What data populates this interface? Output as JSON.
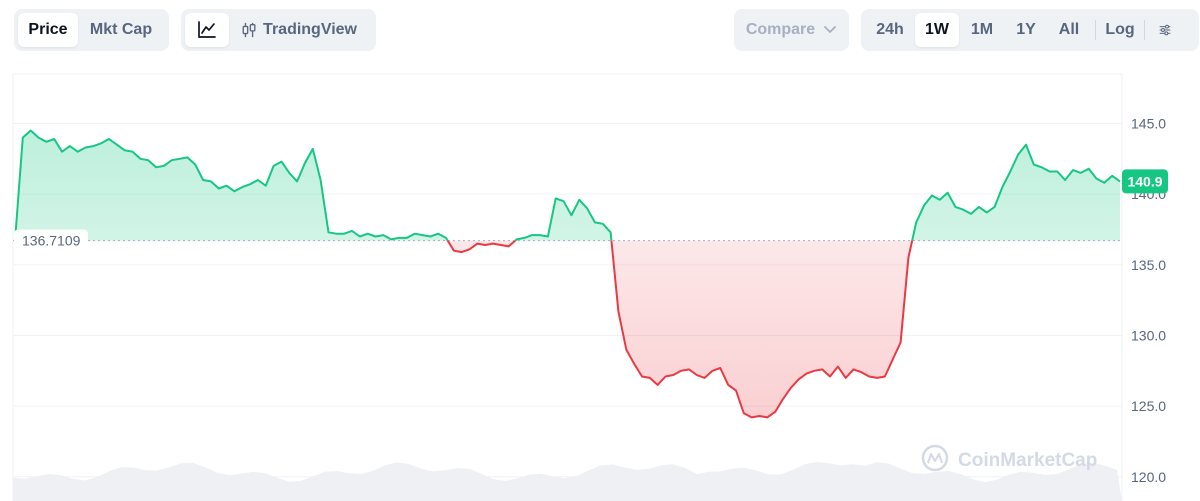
{
  "toolbar": {
    "view_tabs": [
      {
        "label": "Price",
        "active": true
      },
      {
        "label": "Mkt Cap",
        "active": false
      }
    ],
    "tradingview_label": "TradingView",
    "compare_label": "Compare",
    "ranges": [
      {
        "label": "24h",
        "active": false
      },
      {
        "label": "1W",
        "active": true
      },
      {
        "label": "1M",
        "active": false
      },
      {
        "label": "1Y",
        "active": false
      },
      {
        "label": "All",
        "active": false
      }
    ],
    "log_label": "Log"
  },
  "watermark": "CoinMarketCap",
  "colors": {
    "up": "#16c784",
    "down": "#ea3943",
    "grid": "#eff2f5",
    "axis_text": "#58667e"
  },
  "chart_data": {
    "type": "line",
    "baseline": 136.7109,
    "baseline_label": "136.7109",
    "current_price_label": "140.9",
    "ylim": [
      118.5,
      148.5
    ],
    "yticks": [
      {
        "value": 145.0,
        "label": "145.0"
      },
      {
        "value": 140.0,
        "label": "140.0"
      },
      {
        "value": 135.0,
        "label": "135.0"
      },
      {
        "value": 130.0,
        "label": "130.0"
      },
      {
        "value": 125.0,
        "label": "125.0"
      },
      {
        "value": 120.0,
        "label": "120.0"
      }
    ],
    "series": [
      {
        "values": [
          136.7,
          144.0,
          144.5,
          144.0,
          143.7,
          143.9,
          143.0,
          143.4,
          143.0,
          143.3,
          143.4,
          143.6,
          143.9,
          143.5,
          143.1,
          143.0,
          142.5,
          142.4,
          141.9,
          142.0,
          142.4,
          142.5,
          142.6,
          142.1,
          141.0,
          140.9,
          140.4,
          140.6,
          140.2,
          140.5,
          140.7,
          141.0,
          140.6,
          142.0,
          142.3,
          141.5,
          140.9,
          142.2,
          143.2,
          141.0,
          137.3,
          137.2,
          137.2,
          137.4,
          137.0,
          137.2,
          137.0,
          137.1,
          136.8,
          136.9,
          136.9,
          137.2,
          137.1,
          137.0,
          137.2,
          136.9,
          136.0,
          135.9,
          136.1,
          136.5,
          136.4,
          136.5,
          136.4,
          136.3,
          136.8,
          136.9,
          137.1,
          137.1,
          137.0,
          139.7,
          139.5,
          138.5,
          139.6,
          139.0,
          138.0,
          137.9,
          137.3,
          131.7,
          129.0,
          128.0,
          127.1,
          127.0,
          126.5,
          127.1,
          127.2,
          127.5,
          127.6,
          127.2,
          127.0,
          127.5,
          127.7,
          126.5,
          126.1,
          124.5,
          124.2,
          124.3,
          124.2,
          124.6,
          125.5,
          126.3,
          126.9,
          127.3,
          127.5,
          127.6,
          127.1,
          127.8,
          127.0,
          127.6,
          127.4,
          127.1,
          127.0,
          127.1,
          128.3,
          129.5,
          135.5,
          138.0,
          139.2,
          139.9,
          139.6,
          140.1,
          139.1,
          138.9,
          138.6,
          139.1,
          138.7,
          139.1,
          140.5,
          141.6,
          142.8,
          143.5,
          142.1,
          141.9,
          141.6,
          141.6,
          141.0,
          141.7,
          141.5,
          141.8,
          141.1,
          140.8,
          141.3,
          140.9
        ]
      }
    ]
  }
}
